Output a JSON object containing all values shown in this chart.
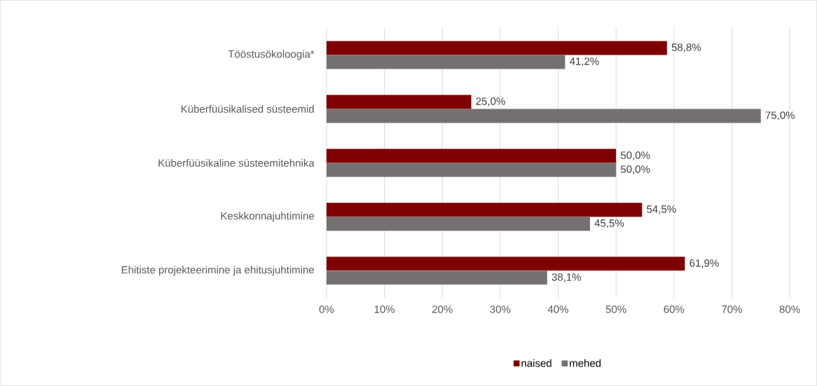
{
  "chart_data": {
    "type": "bar",
    "orientation": "horizontal",
    "categories": [
      "Tööstusökoloogia*",
      "Küberfüüsikalised süsteemid",
      "Küberfüüsikaline süsteemitehnika",
      "Keskkonnajuhtimine",
      "Ehitiste projekteerimine ja ehitusjuhtimine"
    ],
    "series": [
      {
        "name": "naised",
        "color": "#7f0000",
        "values": [
          58.8,
          25.0,
          50.0,
          54.5,
          61.9
        ],
        "value_labels": [
          "58,8%",
          "25,0%",
          "50,0%",
          "54,5%",
          "61,9%"
        ]
      },
      {
        "name": "mehed",
        "color": "#767171",
        "values": [
          41.2,
          75.0,
          50.0,
          45.5,
          38.1
        ],
        "value_labels": [
          "41,2%",
          "75,0%",
          "50,0%",
          "45,5%",
          "38,1%"
        ]
      }
    ],
    "xlim": [
      0,
      80
    ],
    "xticks": [
      {
        "value": 0,
        "label": "0%"
      },
      {
        "value": 10,
        "label": "10%"
      },
      {
        "value": 20,
        "label": "20%"
      },
      {
        "value": 30,
        "label": "30%"
      },
      {
        "value": 40,
        "label": "40%"
      },
      {
        "value": 50,
        "label": "50%"
      },
      {
        "value": 60,
        "label": "60%"
      },
      {
        "value": 70,
        "label": "70%"
      },
      {
        "value": 80,
        "label": "80%"
      }
    ],
    "grid": "x",
    "legend": "bottom"
  }
}
